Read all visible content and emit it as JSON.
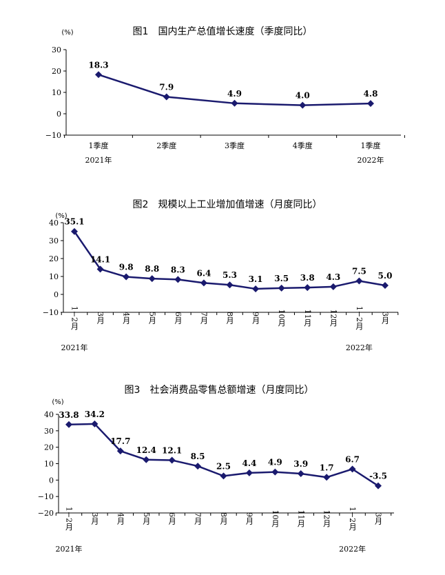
{
  "chart_data": [
    {
      "type": "line",
      "title": "图1　国内生产总值增长速度（季度同比）",
      "unit": "(%)",
      "ylim": [
        -10,
        30
      ],
      "yticks": [
        30,
        20,
        10,
        0,
        -10
      ],
      "ytick_labels": [
        "30",
        "20",
        "10",
        "0",
        "−10"
      ],
      "categories": [
        "1季度",
        "2季度",
        "3季度",
        "4季度",
        "1季度"
      ],
      "category_stacked": false,
      "year_labels": [
        {
          "index": 0,
          "text": "2021年"
        },
        {
          "index": 4,
          "text": "2022年"
        }
      ],
      "series": [
        {
          "values": [
            18.3,
            7.9,
            4.9,
            4.0,
            4.8
          ],
          "labels": [
            "18.3",
            "7.9",
            "4.9",
            "4.0",
            "4.8"
          ]
        }
      ],
      "color": "#1a1a6e"
    },
    {
      "type": "line",
      "title": "图2　规模以上工业增加值增速（月度同比）",
      "unit": "(%)",
      "ylim": [
        -10,
        40
      ],
      "yticks": [
        40,
        30,
        20,
        10,
        0,
        -10
      ],
      "ytick_labels": [
        "40",
        "30",
        "20",
        "10",
        "0",
        "−10"
      ],
      "categories": [
        "1−2月",
        "3月",
        "4月",
        "5月",
        "6月",
        "7月",
        "8月",
        "9月",
        "10月",
        "11月",
        "12月",
        "1−2月",
        "3月"
      ],
      "category_stacked": true,
      "year_labels": [
        {
          "index": 0,
          "text": "2021年"
        },
        {
          "index": 11,
          "text": "2022年"
        }
      ],
      "series": [
        {
          "values": [
            35.1,
            14.1,
            9.8,
            8.8,
            8.3,
            6.4,
            5.3,
            3.1,
            3.5,
            3.8,
            4.3,
            7.5,
            5.0
          ],
          "labels": [
            "35.1",
            "14.1",
            "9.8",
            "8.8",
            "8.3",
            "6.4",
            "5.3",
            "3.1",
            "3.5",
            "3.8",
            "4.3",
            "7.5",
            "5.0"
          ]
        }
      ],
      "color": "#1a1a6e"
    },
    {
      "type": "line",
      "title": "图3　社会消费品零售总额增速（月度同比）",
      "unit": "(%)",
      "ylim": [
        -20,
        40
      ],
      "yticks": [
        40,
        30,
        20,
        10,
        0,
        -10,
        -20
      ],
      "ytick_labels": [
        "40",
        "30",
        "20",
        "10",
        "0",
        "−10",
        "−20"
      ],
      "categories": [
        "1−2月",
        "3月",
        "4月",
        "5月",
        "6月",
        "7月",
        "8月",
        "9月",
        "10月",
        "11月",
        "12月",
        "1−2月",
        "3月"
      ],
      "category_stacked": true,
      "year_labels": [
        {
          "index": 0,
          "text": "2021年"
        },
        {
          "index": 11,
          "text": "2022年"
        }
      ],
      "series": [
        {
          "values": [
            33.8,
            34.2,
            17.7,
            12.4,
            12.1,
            8.5,
            2.5,
            4.4,
            4.9,
            3.9,
            1.7,
            6.7,
            -3.5
          ],
          "labels": [
            "33.8",
            "34.2",
            "17.7",
            "12.4",
            "12.1",
            "8.5",
            "2.5",
            "4.4",
            "4.9",
            "3.9",
            "1.7",
            "6.7",
            "-3.5"
          ]
        }
      ],
      "color": "#1a1a6e"
    }
  ]
}
